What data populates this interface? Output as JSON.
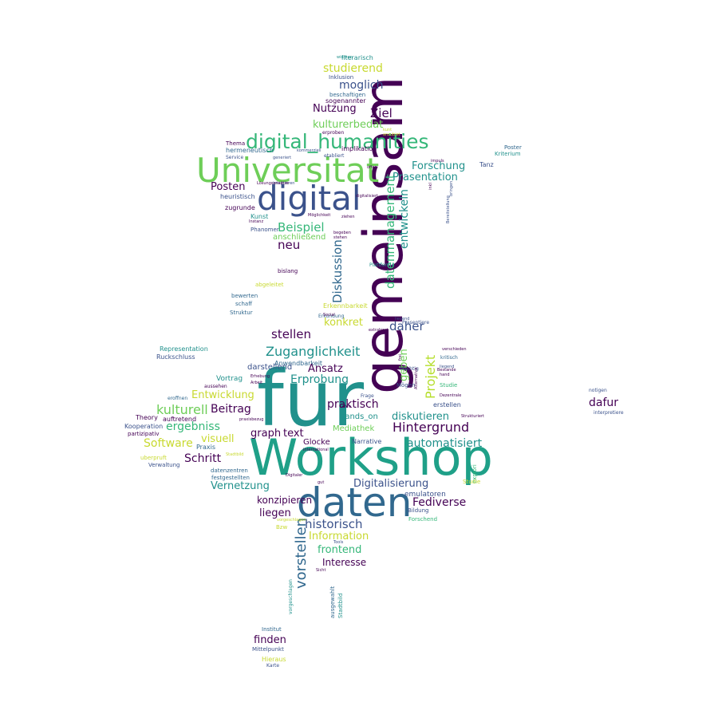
{
  "palette": {
    "purple": "#440154",
    "indigo": "#3b528b",
    "blue": "#31688e",
    "teal": "#21918c",
    "green": "#35b779",
    "lime": "#6ece58",
    "yellow": "#c8d930"
  },
  "words": [
    {
      "text": "fur",
      "color": "teal"
    },
    {
      "text": "Workshop",
      "color": "teal"
    },
    {
      "text": "gemeinsam",
      "color": "purple"
    },
    {
      "text": "daten",
      "color": "blue"
    },
    {
      "text": "Universitat",
      "color": "lime"
    },
    {
      "text": "digital",
      "color": "indigo"
    },
    {
      "text": "digital_humanities",
      "color": "green"
    },
    {
      "text": "datenmanagement",
      "color": "green"
    },
    {
      "text": "Hintergrund",
      "color": "purple"
    },
    {
      "text": "Beispiel",
      "color": "green"
    },
    {
      "text": "Zuganglichkeit",
      "color": "teal"
    },
    {
      "text": "Projekt",
      "color": "yellow"
    },
    {
      "text": "vorstellen",
      "color": "blue"
    },
    {
      "text": "historisch",
      "color": "indigo"
    },
    {
      "text": "Forschung",
      "color": "teal"
    },
    {
      "text": "Prasentation",
      "color": "teal"
    },
    {
      "text": "Ziel",
      "color": "purple"
    },
    {
      "text": "moglich",
      "color": "indigo"
    },
    {
      "text": "kulturerbedat",
      "color": "lime"
    },
    {
      "text": "studierend",
      "color": "yellow"
    },
    {
      "text": "Nutzung",
      "color": "purple"
    },
    {
      "text": "Posten",
      "color": "purple"
    },
    {
      "text": "neu",
      "color": "purple"
    },
    {
      "text": "anschließend",
      "color": "lime"
    },
    {
      "text": "Diskussion",
      "color": "blue"
    },
    {
      "text": "entwickeln",
      "color": "teal"
    },
    {
      "text": "stellen",
      "color": "purple"
    },
    {
      "text": "konkret",
      "color": "yellow"
    },
    {
      "text": "daher",
      "color": "indigo"
    },
    {
      "text": "Erprobung",
      "color": "teal"
    },
    {
      "text": "Ansatz",
      "color": "purple"
    },
    {
      "text": "geben",
      "color": "lime"
    },
    {
      "text": "praktisch",
      "color": "purple"
    },
    {
      "text": "diskutieren",
      "color": "teal"
    },
    {
      "text": "kulturell",
      "color": "lime"
    },
    {
      "text": "Entwicklung",
      "color": "yellow"
    },
    {
      "text": "Beitrag",
      "color": "purple"
    },
    {
      "text": "ergebniss",
      "color": "green"
    },
    {
      "text": "Software",
      "color": "yellow"
    },
    {
      "text": "visuell",
      "color": "yellow"
    },
    {
      "text": "Schritt",
      "color": "purple"
    },
    {
      "text": "graph",
      "color": "purple"
    },
    {
      "text": "text",
      "color": "purple"
    },
    {
      "text": "automatisiert",
      "color": "teal"
    },
    {
      "text": "Digitalisierung",
      "color": "indigo"
    },
    {
      "text": "Vernetzung",
      "color": "teal"
    },
    {
      "text": "konzipieren",
      "color": "purple"
    },
    {
      "text": "liegen",
      "color": "purple"
    },
    {
      "text": "Fediverse",
      "color": "purple"
    },
    {
      "text": "Information",
      "color": "yellow"
    },
    {
      "text": "frontend",
      "color": "green"
    },
    {
      "text": "Interesse",
      "color": "purple"
    },
    {
      "text": "finden",
      "color": "purple"
    },
    {
      "text": "dafur",
      "color": "purple"
    },
    {
      "text": "Mediathek",
      "color": "lime"
    },
    {
      "text": "emulatoren",
      "color": "indigo"
    },
    {
      "text": "darstellend",
      "color": "indigo"
    },
    {
      "text": "Anwendbarkeit",
      "color": "blue"
    },
    {
      "text": "hands_on",
      "color": "teal"
    },
    {
      "text": "Glocke",
      "color": "purple"
    },
    {
      "text": "Narrative",
      "color": "indigo"
    },
    {
      "text": "Vortrag",
      "color": "teal"
    },
    {
      "text": "Kunst",
      "color": "teal"
    },
    {
      "text": "Phanomen",
      "color": "indigo"
    },
    {
      "text": "heuristisch",
      "color": "indigo"
    },
    {
      "text": "zugrunde",
      "color": "purple"
    },
    {
      "text": "hermeneutisch",
      "color": "blue"
    },
    {
      "text": "Tanz",
      "color": "indigo"
    },
    {
      "text": "Kriterium",
      "color": "teal"
    },
    {
      "text": "Poster",
      "color": "blue"
    },
    {
      "text": "erstellen",
      "color": "indigo"
    },
    {
      "text": "Institut",
      "color": "blue"
    },
    {
      "text": "Mittelpunkt",
      "color": "indigo"
    },
    {
      "text": "Hieraus",
      "color": "yellow"
    },
    {
      "text": "Karte",
      "color": "indigo"
    },
    {
      "text": "Theory",
      "color": "purple"
    },
    {
      "text": "Kooperation",
      "color": "indigo"
    },
    {
      "text": "auftretend",
      "color": "purple"
    },
    {
      "text": "Representation",
      "color": "teal"
    },
    {
      "text": "Ruckschluss",
      "color": "indigo"
    },
    {
      "text": "Praxis",
      "color": "blue"
    },
    {
      "text": "Verwaltung",
      "color": "indigo"
    },
    {
      "text": "Bildung",
      "color": "indigo"
    },
    {
      "text": "Forschend",
      "color": "green"
    },
    {
      "text": "untersuch",
      "color": "indigo"
    },
    {
      "text": "Prasentiere",
      "color": "teal"
    },
    {
      "text": "literarisch",
      "color": "indigo"
    },
    {
      "text": "Inklusion",
      "color": "blue"
    },
    {
      "text": "beschaftigen",
      "color": "purple"
    },
    {
      "text": "sogenannter",
      "color": "purple"
    },
    {
      "text": "implikation",
      "color": "purple"
    },
    {
      "text": "bislang",
      "color": "blue"
    },
    {
      "text": "bewerten",
      "color": "blue"
    },
    {
      "text": "schaff",
      "color": "blue"
    },
    {
      "text": "Struktur",
      "color": "yellow"
    },
    {
      "text": "abgeleitet",
      "color": "yellow"
    },
    {
      "text": "Erkennbarkeit",
      "color": "blue"
    },
    {
      "text": "Erkundung",
      "color": "indigo"
    },
    {
      "text": "notigen",
      "color": "indigo"
    },
    {
      "text": "interpretiere",
      "color": "blue"
    },
    {
      "text": "datenzentren",
      "color": "blue"
    },
    {
      "text": "festgestellten",
      "color": "teal"
    },
    {
      "text": "vorgeschlagen",
      "color": "blue"
    },
    {
      "text": "ausgewahlt",
      "color": "teal"
    },
    {
      "text": "Stadtbild",
      "color": "yellow"
    },
    {
      "text": "uberpruft",
      "color": "yellow"
    },
    {
      "text": "eroffnen",
      "color": "blue"
    },
    {
      "text": "aussehen",
      "color": "purple"
    },
    {
      "text": "partizipativ",
      "color": "purple"
    },
    {
      "text": "Bzw",
      "color": "yellow"
    },
    {
      "text": "Sicht",
      "color": "purple"
    },
    {
      "text": "Social",
      "color": "blue"
    },
    {
      "text": "kritisch",
      "color": "indigo"
    },
    {
      "text": "liegend",
      "color": "green"
    },
    {
      "text": "Studie",
      "color": "yellow"
    },
    {
      "text": "explori",
      "color": "green"
    },
    {
      "text": "Plattforme",
      "color": "teal"
    },
    {
      "text": "Mögen",
      "color": "indigo"
    },
    {
      "text": "Machtig",
      "color": "indigo"
    },
    {
      "text": "Tools",
      "color": "indigo"
    },
    {
      "text": "Frage",
      "color": "purple"
    },
    {
      "text": "Lehre",
      "color": "purple"
    },
    {
      "text": "bringen",
      "color": "indigo"
    },
    {
      "text": "Bereitstellung",
      "color": "indigo"
    },
    {
      "text": "erproben",
      "color": "indigo"
    },
    {
      "text": "etabliert",
      "color": "purple"
    },
    {
      "text": "generiert",
      "color": "indigo"
    },
    {
      "text": "kommerziell",
      "color": "indigo"
    },
    {
      "text": "digitalisiert",
      "color": "indigo"
    },
    {
      "text": "integrieren",
      "color": "purple"
    },
    {
      "text": "Lösungsansätze",
      "color": "indigo"
    },
    {
      "text": "Instanz",
      "color": "purple"
    },
    {
      "text": "Möglichkeit",
      "color": "purple"
    },
    {
      "text": "Autodone",
      "color": "purple"
    },
    {
      "text": "hurd",
      "color": "purple"
    },
    {
      "text": "halbtegig",
      "color": "indigo"
    },
    {
      "text": "Thema",
      "color": "yellow"
    },
    {
      "text": "Service",
      "color": "yellow"
    },
    {
      "text": "kunt",
      "color": "teal"
    },
    {
      "text": "anzubiet",
      "color": "purple"
    },
    {
      "text": "widman",
      "color": "purple"
    },
    {
      "text": "impuls",
      "color": "purple"
    },
    {
      "text": "offen",
      "color": "purple"
    },
    {
      "text": "stehen",
      "color": "purple"
    },
    {
      "text": "begeben",
      "color": "purple"
    },
    {
      "text": "ziehen",
      "color": "purple"
    },
    {
      "text": "extrahiert",
      "color": "purple"
    },
    {
      "text": "frei",
      "color": "purple"
    },
    {
      "text": "Alternative",
      "color": "purple"
    },
    {
      "text": "Bestande",
      "color": "purple"
    },
    {
      "text": "verschieden",
      "color": "purple"
    },
    {
      "text": "hand",
      "color": "purple"
    },
    {
      "text": "Dezentrale",
      "color": "purple"
    },
    {
      "text": "Strukturiert",
      "color": "purple"
    },
    {
      "text": "gut",
      "color": "purple"
    },
    {
      "text": "international",
      "color": "purple"
    },
    {
      "text": "Digitaler",
      "color": "purple"
    },
    {
      "text": "inkl",
      "color": "purple"
    },
    {
      "text": "praxisbezug",
      "color": "purple"
    },
    {
      "text": "Erhebung",
      "color": "purple"
    },
    {
      "text": "Arbeit",
      "color": "purple"
    },
    {
      "text": "AG",
      "color": "purple"
    }
  ]
}
